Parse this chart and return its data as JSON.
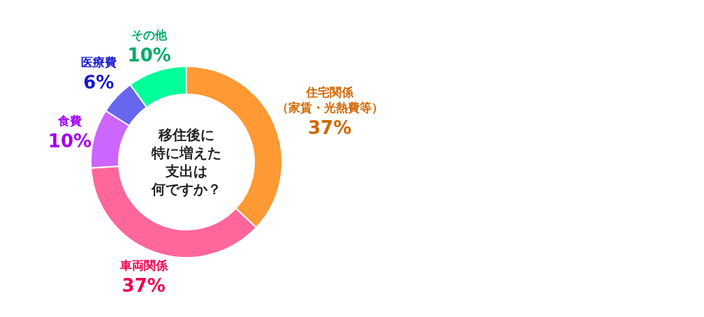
{
  "chart_data": {
    "type": "donut",
    "title": "移住後に特に増えた支出は何ですか？",
    "categories": [
      "住宅関係（家賃・光熱費等）",
      "車両関係",
      "食費",
      "医療費",
      "その他"
    ],
    "values": [
      37,
      37,
      10,
      6,
      10
    ],
    "colors": [
      "#ff9933",
      "#ff6699",
      "#cc66ff",
      "#6666ee",
      "#00ff99"
    ],
    "value_labels": [
      "37%",
      "37%",
      "10%",
      "6%",
      "10%"
    ]
  }
}
